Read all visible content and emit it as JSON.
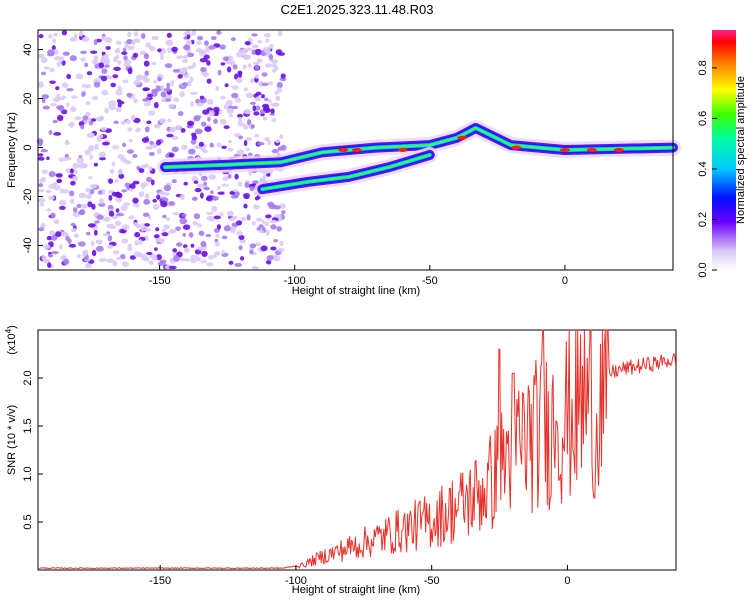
{
  "title": "C2E1.2025.323.11.48.R03",
  "chart_data": [
    {
      "type": "heatmap",
      "name": "spectrogram",
      "xlabel": "Height of straight line (km)",
      "ylabel": "Frequency (Hz)",
      "xlim": [
        -195,
        40
      ],
      "ylim": [
        -50,
        48
      ],
      "xticks": [
        -150,
        -100,
        -50,
        0
      ],
      "yticks": [
        -40,
        -20,
        0,
        20,
        40
      ],
      "colorbar": {
        "label": "Normalized spectral amplitude",
        "range": [
          0.0,
          0.95
        ],
        "ticks": [
          0.0,
          0.2,
          0.4,
          0.6,
          0.8
        ]
      },
      "traces": [
        {
          "name": "upper trace",
          "points": [
            [
              -148,
              -8
            ],
            [
              -125,
              -7
            ],
            [
              -105,
              -6
            ],
            [
              -90,
              -2
            ],
            [
              -70,
              0
            ],
            [
              -50,
              1
            ],
            [
              -40,
              4
            ],
            [
              -33,
              8
            ],
            [
              -20,
              1
            ],
            [
              0,
              -1
            ],
            [
              40,
              0
            ]
          ]
        },
        {
          "name": "lower trace",
          "points": [
            [
              -112,
              -17
            ],
            [
              -95,
              -14
            ],
            [
              -80,
              -12
            ],
            [
              -65,
              -8
            ],
            [
              -50,
              -3
            ]
          ]
        }
      ]
    },
    {
      "type": "line",
      "name": "snr",
      "xlabel": "Height of straight line (km)",
      "ylabel": "SNR (10 * v/v)",
      "y_multiplier": "(x10",
      "y_multiplier_exp": "4",
      "y_multiplier_close": ")",
      "xlim": [
        -195,
        40
      ],
      "ylim": [
        0,
        2.5
      ],
      "xticks": [
        -150,
        -100,
        -50,
        0
      ],
      "yticks": [
        0.5,
        1.0,
        1.5,
        2.0
      ],
      "yticklabels": [
        "0.5",
        "1.0",
        "1.5",
        "2.0"
      ],
      "color": "#e8312a",
      "envelope": {
        "x": [
          -195,
          -105,
          -98,
          -90,
          -80,
          -70,
          -60,
          -50,
          -40,
          -30,
          -25,
          -20,
          -15,
          -10,
          -5,
          0,
          5,
          10,
          15,
          20,
          30,
          40
        ],
        "y": [
          0.02,
          0.02,
          0.05,
          0.15,
          0.25,
          0.35,
          0.45,
          0.55,
          0.7,
          0.9,
          1.1,
          1.4,
          1.45,
          1.5,
          1.6,
          1.7,
          1.85,
          1.95,
          2.05,
          2.1,
          2.15,
          2.2
        ]
      },
      "peaks": [
        [
          -25,
          2.3
        ],
        [
          -20,
          2.05
        ],
        [
          -9,
          2.55
        ],
        [
          -4,
          1.55
        ],
        [
          10,
          0.75
        ]
      ]
    }
  ]
}
